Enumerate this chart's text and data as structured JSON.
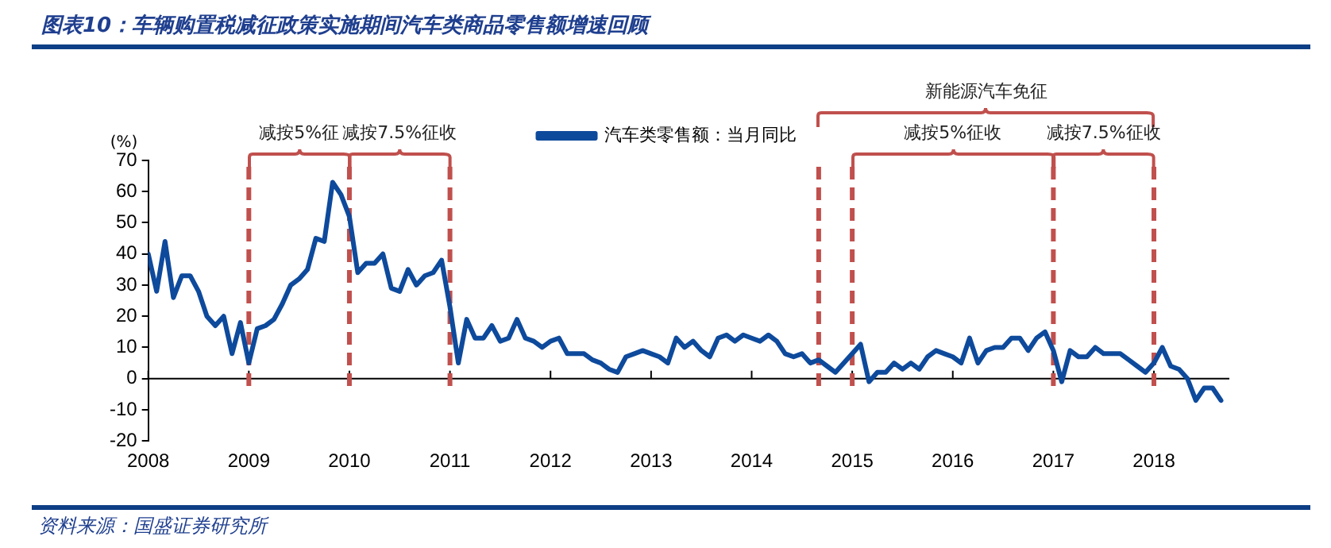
{
  "chart_data": {
    "type": "line",
    "title": "图表10：车辆购置税减征政策实施期间汽车类商品零售额增速回顾",
    "ylabel": "(%)",
    "annotations": [
      "资料来源：国盛证券研究所",
      "减按5%征",
      "减按7.5%征收",
      "新能源汽车免征",
      "减按5%征收",
      "减按7.5%征收"
    ],
    "series": [
      {
        "name": "汽车类零售额：当月同比",
        "color": "#0e4a9c",
        "x": [
          "2008-01",
          "2008-02",
          "2008-03",
          "2008-04",
          "2008-05",
          "2008-06",
          "2008-07",
          "2008-08",
          "2008-09",
          "2008-10",
          "2008-11",
          "2008-12",
          "2009-01",
          "2009-02",
          "2009-03",
          "2009-04",
          "2009-05",
          "2009-06",
          "2009-07",
          "2009-08",
          "2009-09",
          "2009-10",
          "2009-11",
          "2009-12",
          "2010-01",
          "2010-02",
          "2010-03",
          "2010-04",
          "2010-05",
          "2010-06",
          "2010-07",
          "2010-08",
          "2010-09",
          "2010-10",
          "2010-11",
          "2010-12",
          "2011-01",
          "2011-02",
          "2011-03",
          "2011-04",
          "2011-05",
          "2011-06",
          "2011-07",
          "2011-08",
          "2011-09",
          "2011-10",
          "2011-11",
          "2011-12",
          "2012-01",
          "2012-02",
          "2012-03",
          "2012-04",
          "2012-05",
          "2012-06",
          "2012-07",
          "2012-08",
          "2012-09",
          "2012-10",
          "2012-11",
          "2012-12",
          "2013-01",
          "2013-02",
          "2013-03",
          "2013-04",
          "2013-05",
          "2013-06",
          "2013-07",
          "2013-08",
          "2013-09",
          "2013-10",
          "2013-11",
          "2013-12",
          "2014-01",
          "2014-02",
          "2014-03",
          "2014-04",
          "2014-05",
          "2014-06",
          "2014-07",
          "2014-08",
          "2014-09",
          "2014-10",
          "2014-11",
          "2014-12",
          "2015-01",
          "2015-02",
          "2015-03",
          "2015-04",
          "2015-05",
          "2015-06",
          "2015-07",
          "2015-08",
          "2015-09",
          "2015-10",
          "2015-11",
          "2015-12",
          "2016-01",
          "2016-02",
          "2016-03",
          "2016-04",
          "2016-05",
          "2016-06",
          "2016-07",
          "2016-08",
          "2016-09",
          "2016-10",
          "2016-11",
          "2016-12",
          "2017-01",
          "2017-02",
          "2017-03",
          "2017-04",
          "2017-05",
          "2017-06",
          "2017-07",
          "2017-08",
          "2017-09",
          "2017-10",
          "2017-11",
          "2017-12",
          "2018-01",
          "2018-02",
          "2018-03",
          "2018-04",
          "2018-05",
          "2018-06",
          "2018-07",
          "2018-08",
          "2018-09"
        ],
        "values": [
          40,
          28,
          44,
          26,
          33,
          33,
          28,
          20,
          17,
          20,
          8,
          18,
          5,
          16,
          17,
          19,
          24,
          30,
          32,
          35,
          45,
          44,
          63,
          59,
          52,
          34,
          37,
          37,
          40,
          29,
          28,
          35,
          30,
          33,
          34,
          38,
          23,
          5,
          19,
          13,
          13,
          17,
          12,
          13,
          19,
          13,
          12,
          10,
          12,
          13,
          8,
          8,
          8,
          6,
          5,
          3,
          2,
          7,
          8,
          9,
          8,
          7,
          5,
          13,
          10,
          12,
          9,
          7,
          13,
          14,
          12,
          14,
          13,
          12,
          14,
          12,
          8,
          7,
          8,
          5,
          6,
          4,
          2,
          5,
          8,
          11,
          -1,
          2,
          2,
          5,
          3,
          5,
          3,
          7,
          9,
          8,
          7,
          5,
          13,
          5,
          9,
          10,
          10,
          13,
          13,
          9,
          13,
          15,
          9,
          -1,
          9,
          7,
          7,
          10,
          8,
          8,
          8,
          6,
          4,
          2,
          5,
          10,
          4,
          3,
          0,
          -7,
          -3,
          -3,
          -7
        ]
      }
    ],
    "xlim": [
      "2008-01",
      "2018-10"
    ],
    "xticks": [
      "2008",
      "2009",
      "2010",
      "2011",
      "2012",
      "2013",
      "2014",
      "2015",
      "2016",
      "2017",
      "2018"
    ],
    "ylim": [
      -20,
      70
    ],
    "yticks": [
      -20,
      -10,
      0,
      10,
      20,
      30,
      40,
      50,
      60,
      70
    ],
    "ref_lines": [
      {
        "axis": "x",
        "value": "2009-01",
        "color": "#c0504d",
        "line_style": "dashed"
      },
      {
        "axis": "x",
        "value": "2010-01",
        "color": "#c0504d",
        "line_style": "dashed"
      },
      {
        "axis": "x",
        "value": "2011-01",
        "color": "#c0504d",
        "line_style": "dashed"
      },
      {
        "axis": "x",
        "value": "2014-09",
        "color": "#c0504d",
        "line_style": "dashed"
      },
      {
        "axis": "x",
        "value": "2015-01",
        "color": "#c0504d",
        "line_style": "dashed"
      },
      {
        "axis": "x",
        "value": "2017-01",
        "color": "#c0504d",
        "line_style": "dashed"
      },
      {
        "axis": "x",
        "value": "2018-01",
        "color": "#c0504d",
        "line_style": "dashed"
      }
    ],
    "grid": false,
    "legend": "top",
    "marker": "none",
    "line_style": "solid"
  }
}
